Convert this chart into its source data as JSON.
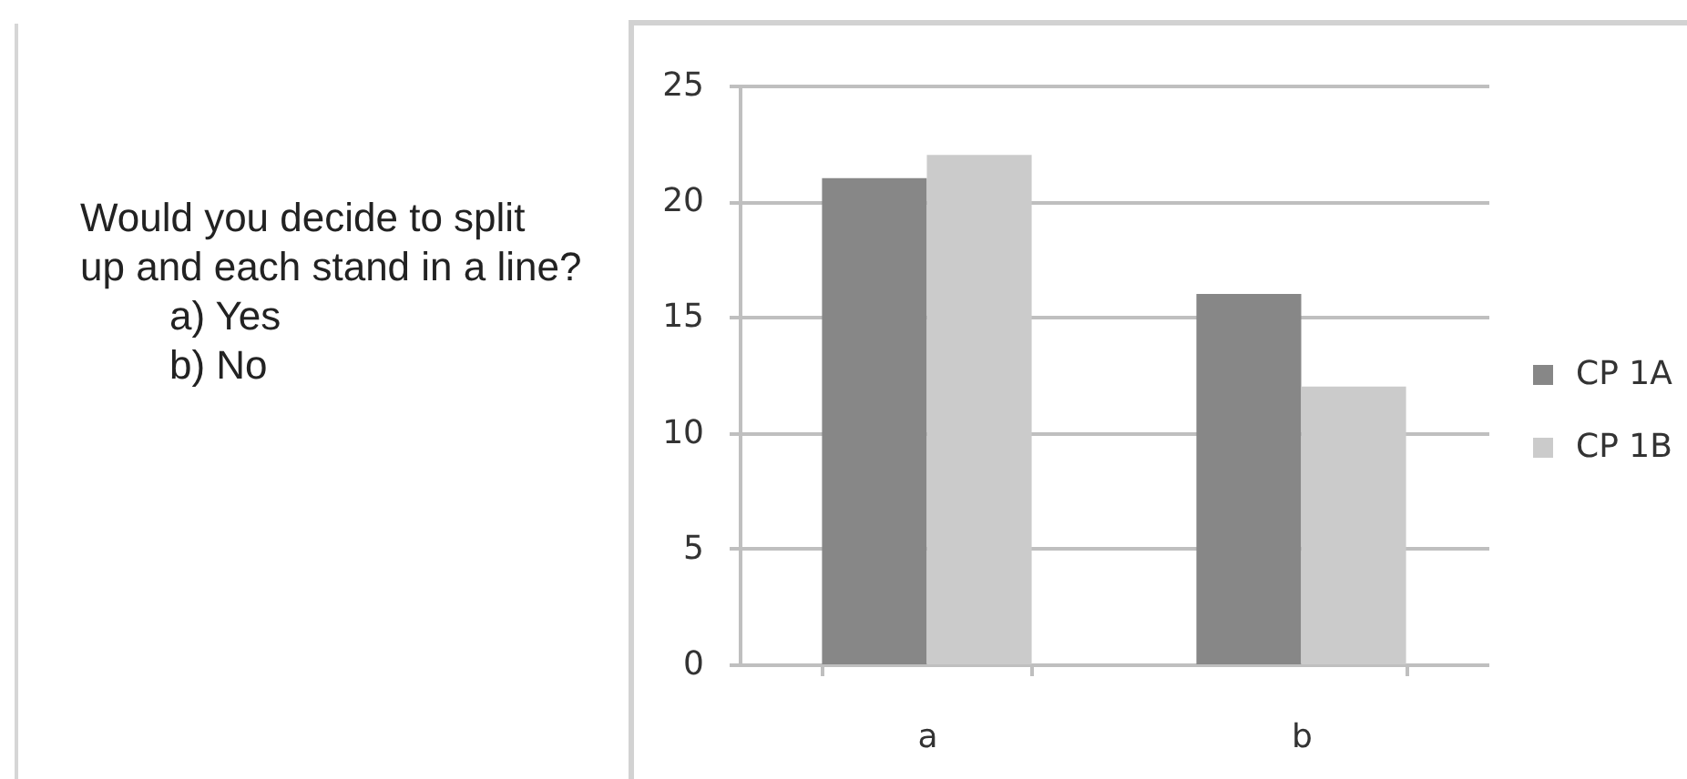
{
  "chart_data": {
    "type": "bar",
    "categories": [
      "a",
      "b"
    ],
    "series": [
      {
        "name": "CP 1A",
        "color": "#878787",
        "values": [
          21,
          16
        ]
      },
      {
        "name": "CP 1B",
        "color": "#cbcbcb",
        "values": [
          22,
          12
        ]
      }
    ],
    "ylim": [
      0,
      25
    ],
    "yticks": [
      0,
      5,
      10,
      15,
      20,
      25
    ],
    "grid": "y",
    "legend": "right",
    "annotations": [
      "Would you decide to split\nup and each stand in a line?",
      "a) Yes",
      "b) No"
    ]
  }
}
